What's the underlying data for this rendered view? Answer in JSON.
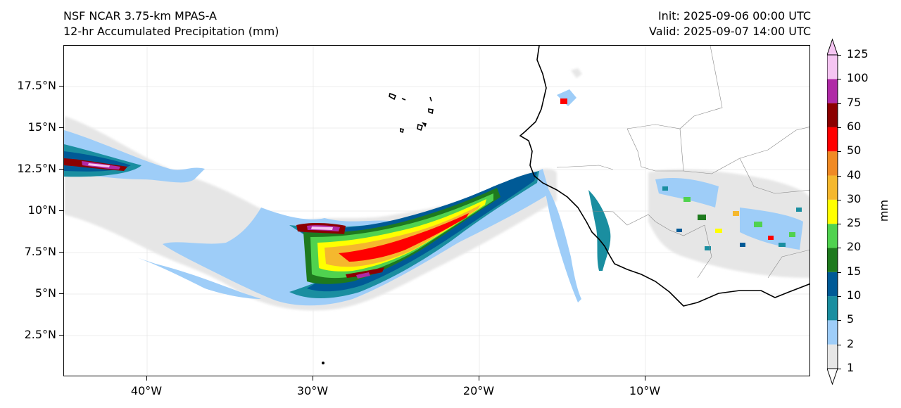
{
  "header": {
    "title_line1": "NSF NCAR 3.75-km MPAS-A",
    "title_line2": "12-hr Accumulated Precipitation (mm)",
    "init": "Init: 2025-09-06 00:00 UTC",
    "valid": "Valid: 2025-09-07 14:00 UTC"
  },
  "axes": {
    "lat_labels": [
      "17.5°N",
      "15°N",
      "12.5°N",
      "10°N",
      "7.5°N",
      "5°N",
      "2.5°N"
    ],
    "lon_labels": [
      "40°W",
      "30°W",
      "20°W",
      "10°W"
    ]
  },
  "colorbar": {
    "unit": "mm",
    "levels": [
      "1",
      "2",
      "5",
      "10",
      "15",
      "20",
      "25",
      "30",
      "40",
      "50",
      "60",
      "75",
      "100",
      "125"
    ],
    "colors": [
      "#e6e6e6",
      "#9ecdf8",
      "#1a8ea0",
      "#005a96",
      "#1e7a1e",
      "#50d24f",
      "#ffff00",
      "#f5b82e",
      "#f08a24",
      "#ff0000",
      "#8b0000",
      "#b02aa6",
      "#f5c5f2"
    ]
  },
  "map": {
    "ocean_color": "#ffffff",
    "land_border_color": "#888888",
    "coast_color": "#000000"
  }
}
